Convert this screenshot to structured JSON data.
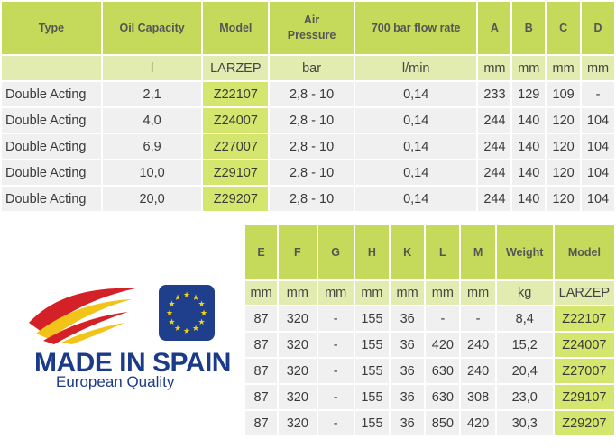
{
  "table1": {
    "headers": [
      "Type",
      "Oil Capacity",
      "Model",
      "Air Pressure",
      "700 bar flow rate",
      "A",
      "B",
      "C",
      "D"
    ],
    "units": [
      "",
      "l",
      "LARZEP",
      "bar",
      "l/min",
      "mm",
      "mm",
      "mm",
      "mm"
    ],
    "rows": [
      [
        "Double Acting",
        "2,1",
        "Z22107",
        "2,8 - 10",
        "0,14",
        "233",
        "129",
        "109",
        "-"
      ],
      [
        "Double Acting",
        "4,0",
        "Z24007",
        "2,8 - 10",
        "0,14",
        "244",
        "140",
        "120",
        "104"
      ],
      [
        "Double Acting",
        "6,9",
        "Z27007",
        "2,8 - 10",
        "0,14",
        "244",
        "140",
        "120",
        "104"
      ],
      [
        "Double Acting",
        "10,0",
        "Z29107",
        "2,8 - 10",
        "0,14",
        "244",
        "140",
        "120",
        "104"
      ],
      [
        "Double Acting",
        "20,0",
        "Z29207",
        "2,8 - 10",
        "0,14",
        "244",
        "140",
        "120",
        "104"
      ]
    ]
  },
  "table2": {
    "headers": [
      "E",
      "F",
      "G",
      "H",
      "K",
      "L",
      "M",
      "Weight",
      "Model"
    ],
    "units": [
      "mm",
      "mm",
      "mm",
      "mm",
      "mm",
      "mm",
      "mm",
      "kg",
      "LARZEP"
    ],
    "rows": [
      [
        "87",
        "320",
        "-",
        "155",
        "36",
        "-",
        "-",
        "8,4",
        "Z22107"
      ],
      [
        "87",
        "320",
        "-",
        "155",
        "36",
        "420",
        "240",
        "15,2",
        "Z24007"
      ],
      [
        "87",
        "320",
        "-",
        "155",
        "36",
        "630",
        "240",
        "20,4",
        "Z27007"
      ],
      [
        "87",
        "320",
        "-",
        "155",
        "36",
        "630",
        "308",
        "23,0",
        "Z29107"
      ],
      [
        "87",
        "320",
        "-",
        "155",
        "36",
        "850",
        "420",
        "30,3",
        "Z29207"
      ]
    ]
  },
  "logo": {
    "main_text": "MADE IN SPAIN",
    "sub_text": "European Quality",
    "flag_icon": "spain-flag-swoosh-icon",
    "eu_icon": "eu-stars-icon",
    "colors": {
      "red": "#d42027",
      "yellow": "#f2c318",
      "blue": "#1b3a88",
      "eu_blue": "#1f3e8c",
      "eu_star": "#f5d312"
    }
  },
  "colors": {
    "header": "#c5d95a",
    "units": "#e2ebb0",
    "cell": "#f0f0f0",
    "model": "#d5e66e"
  }
}
